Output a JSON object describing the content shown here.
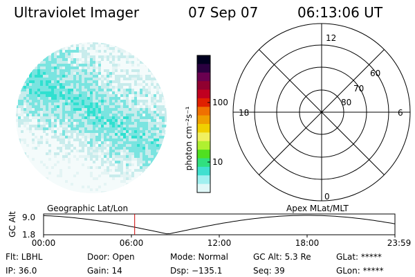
{
  "header": {
    "title": "Ultraviolet Imager",
    "date": "07 Sep 07",
    "time": "06:13:06 UT"
  },
  "colorbar": {
    "label": "photon cm⁻²s⁻¹",
    "ticks": [
      "100",
      "10"
    ],
    "colors": [
      "#000020",
      "#2a0040",
      "#6a0050",
      "#900030",
      "#c00020",
      "#e02000",
      "#f07000",
      "#f0a000",
      "#f0d000",
      "#f0f060",
      "#b0f030",
      "#50e020",
      "#30e080",
      "#40e0d0",
      "#a0f0f0",
      "#e0f8f8"
    ]
  },
  "polar": {
    "mlt_labels": {
      "top": "12",
      "left": "18",
      "right": "6",
      "bottom": "0"
    },
    "lat_labels": [
      "60",
      "70",
      "80"
    ]
  },
  "timeline": {
    "ylabel": "GC Alt",
    "yticks": [
      "9.0",
      "1.8"
    ],
    "left_caption": "Geographic Lat/Lon",
    "right_caption": "Apex MLat/MLT",
    "xticks": [
      "00:00",
      "06:00",
      "12:00",
      "18:00",
      "23:59"
    ],
    "marker_hours": 6.22
  },
  "info": {
    "filter": "Flt: LBHL",
    "door": "Door: Open",
    "mode": "Mode: Normal",
    "gc_alt": "GC Alt: 5.3 Re",
    "glat": "GLat: *****",
    "ip": "IP: 36.0",
    "gain": "Gain: 14",
    "dsp": "Dsp: −135.1",
    "seq": "Seq: 39",
    "glon": "GLon: *****"
  },
  "colors": {
    "marker": "#cc0000",
    "aurora": "#30e0d0",
    "faint": "#c8ecec"
  }
}
